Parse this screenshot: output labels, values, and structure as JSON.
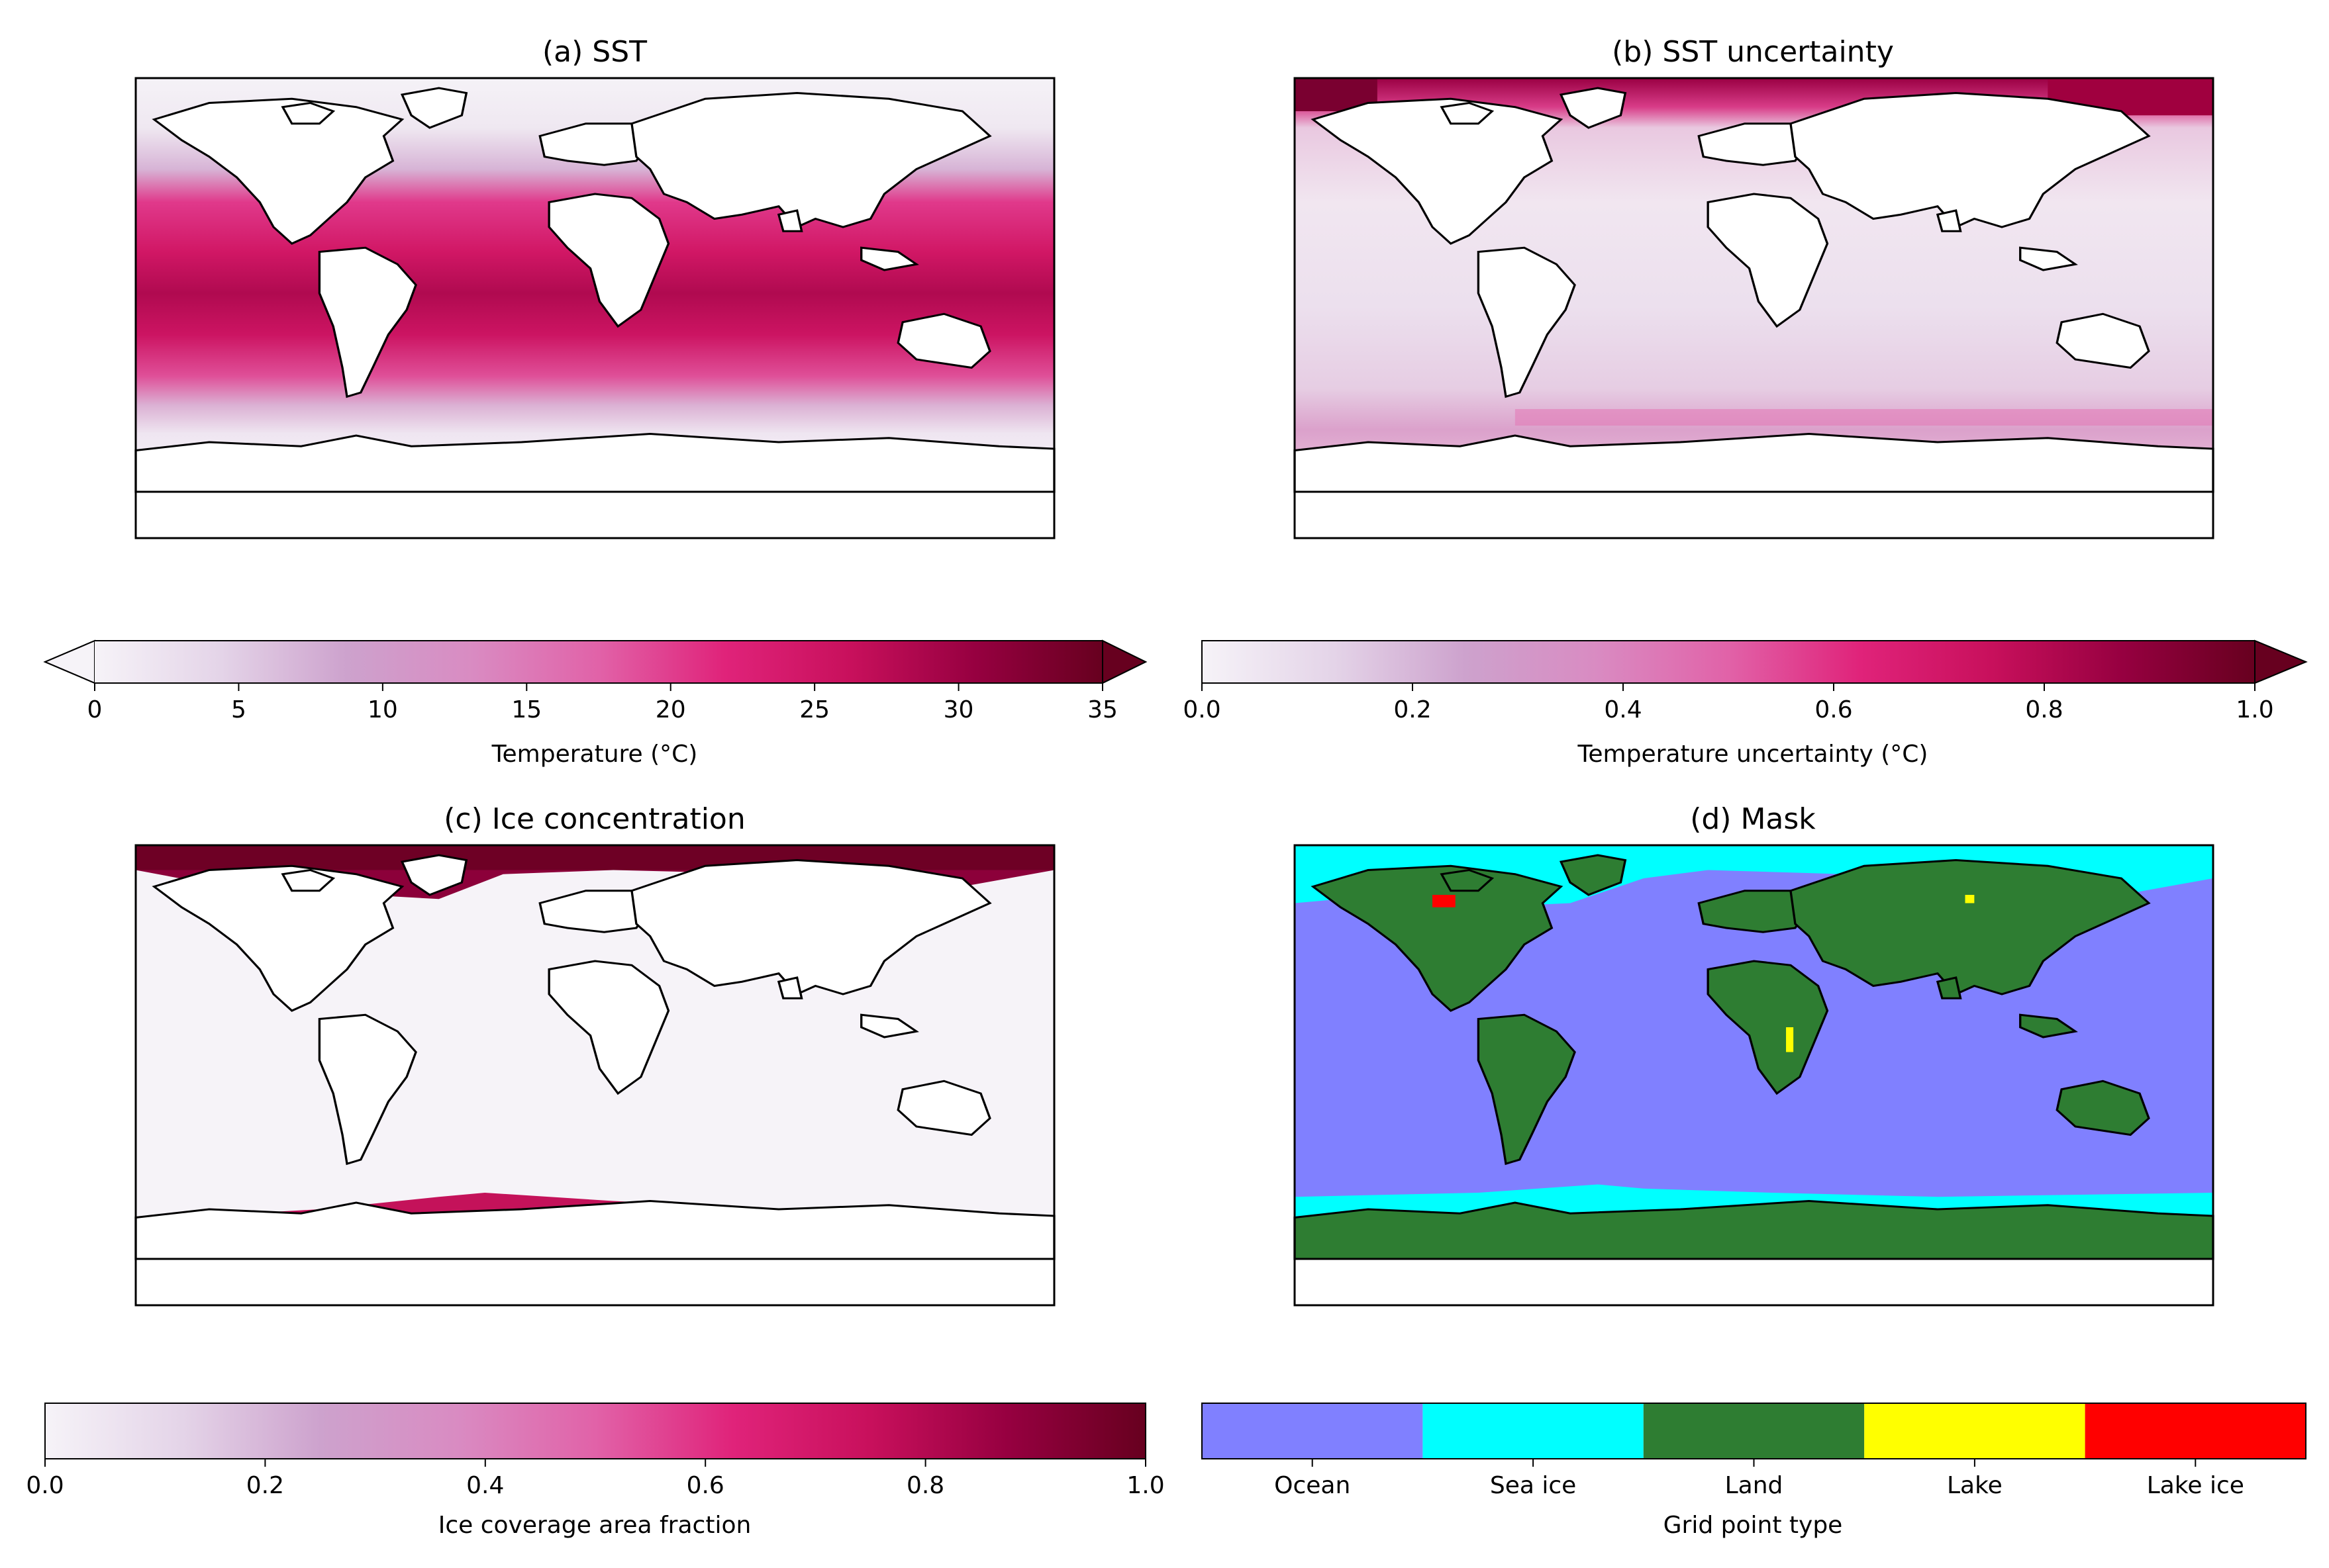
{
  "colors": {
    "pink_ramp": [
      "#f6f3f8",
      "#e4d4e8",
      "#cda2cd",
      "#d98bc2",
      "#e162a8",
      "#e0237a",
      "#c8105c",
      "#960040",
      "#67001f"
    ],
    "land": "#ffffff",
    "coast": "#000000",
    "mask_ocean": "#8080ff",
    "mask_sea_ice": "#00ffff",
    "mask_land": "#2e7d32",
    "mask_lake": "#ffff00",
    "mask_lake_ice": "#ff0000"
  },
  "panels": [
    {
      "id": "a",
      "title": "(a) SST",
      "field": "sst"
    },
    {
      "id": "b",
      "title": "(b) SST uncertainty",
      "field": "unc"
    },
    {
      "id": "c",
      "title": "(c) Ice concentration",
      "field": "ice"
    },
    {
      "id": "d",
      "title": "(d) Mask",
      "field": "mask"
    }
  ],
  "chart_data": [
    {
      "type": "heatmap",
      "title": "(a) SST",
      "colorbar": {
        "label": "Temperature (°C)",
        "range": [
          0,
          35
        ],
        "ticks": [
          "0",
          "5",
          "10",
          "15",
          "20",
          "25",
          "30",
          "35"
        ],
        "extend": "both"
      }
    },
    {
      "type": "heatmap",
      "title": "(b) SST uncertainty",
      "colorbar": {
        "label": "Temperature uncertainty (°C)",
        "range": [
          0.0,
          1.0
        ],
        "ticks": [
          "0.0",
          "0.2",
          "0.4",
          "0.6",
          "0.8",
          "1.0"
        ],
        "extend": "max"
      }
    },
    {
      "type": "heatmap",
      "title": "(c) Ice concentration",
      "colorbar": {
        "label": "Ice coverage area fraction",
        "range": [
          0.0,
          1.0
        ],
        "ticks": [
          "0.0",
          "0.2",
          "0.4",
          "0.6",
          "0.8",
          "1.0"
        ],
        "extend": "neither"
      }
    },
    {
      "type": "heatmap",
      "title": "(d) Mask",
      "colorbar": {
        "label": "Grid point type",
        "categories": [
          "Ocean",
          "Sea ice",
          "Land",
          "Lake",
          "Lake ice"
        ],
        "colors": [
          "#8080ff",
          "#00ffff",
          "#2e7d32",
          "#ffff00",
          "#ff0000"
        ]
      }
    }
  ]
}
